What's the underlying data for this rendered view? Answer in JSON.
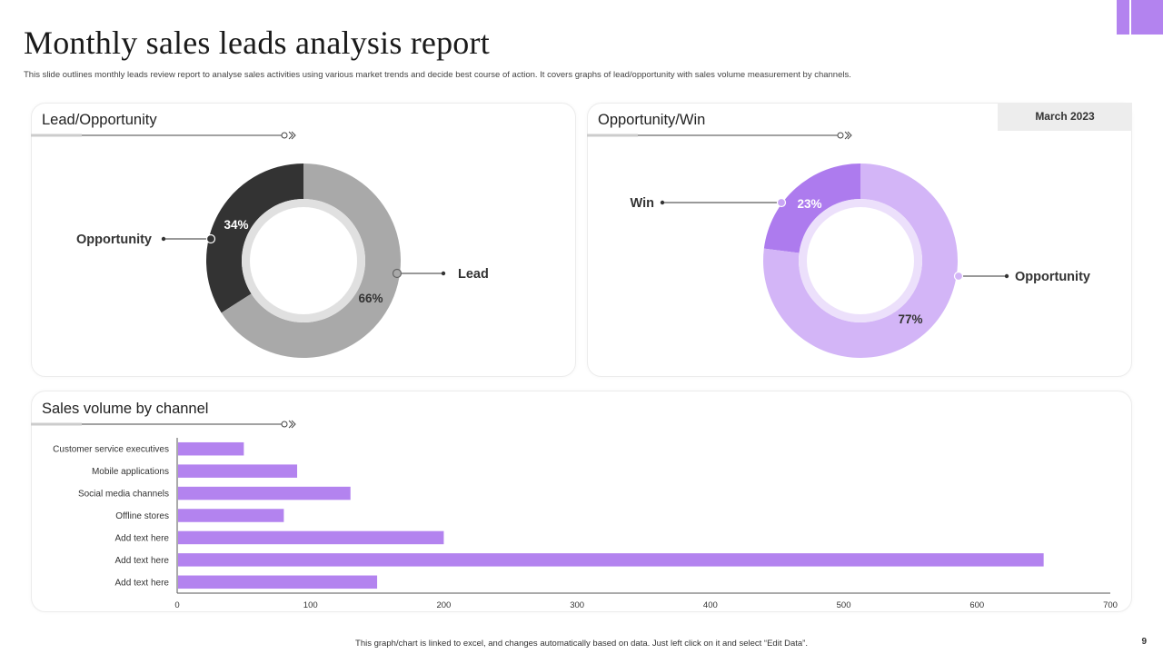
{
  "header": {
    "title": "Monthly sales leads analysis report",
    "subtitle": "This slide outlines monthly leads review report to analyse sales activities using various market trends and decide best course of action. It covers graphs of lead/opportunity with sales volume measurement by channels."
  },
  "panels": {
    "lead_opportunity_title": "Lead/Opportunity",
    "opportunity_win_title": "Opportunity/Win",
    "sales_volume_title": "Sales volume by channel",
    "date_badge": "March 2023"
  },
  "footer": {
    "note": "This graph/chart is linked to excel, and changes automatically based on data. Just left click on it and select “Edit Data”.",
    "page_number": "9"
  },
  "colors": {
    "accent": "#b383ef",
    "purple_dark": "#ad7bee",
    "purple_light": "#d3b5f7",
    "gray_dark": "#333333",
    "gray_light": "#a9a9a9"
  },
  "chart_data": [
    {
      "type": "pie",
      "title": "Lead/Opportunity",
      "donut": true,
      "labels": [
        "Opportunity",
        "Lead"
      ],
      "values": [
        34,
        66
      ],
      "value_labels": [
        "34%",
        "66%"
      ],
      "colors": [
        "#333333",
        "#a9a9a9"
      ]
    },
    {
      "type": "pie",
      "title": "Opportunity/Win",
      "donut": true,
      "labels": [
        "Win",
        "Opportunity"
      ],
      "values": [
        23,
        77
      ],
      "value_labels": [
        "23%",
        "77%"
      ],
      "colors": [
        "#ad7bee",
        "#d3b5f7"
      ]
    },
    {
      "type": "bar",
      "orientation": "horizontal",
      "title": "Sales volume by channel",
      "categories": [
        "Customer service executives",
        "Mobile applications",
        "Social media channels",
        "Offline stores",
        "Add text here",
        "Add text here",
        "Add text here"
      ],
      "values": [
        50,
        90,
        130,
        80,
        200,
        650,
        150
      ],
      "xlim": [
        0,
        700
      ],
      "xticks": [
        "0",
        "100",
        "200",
        "300",
        "400",
        "500",
        "600",
        "700"
      ],
      "color": "#b383ef"
    }
  ]
}
